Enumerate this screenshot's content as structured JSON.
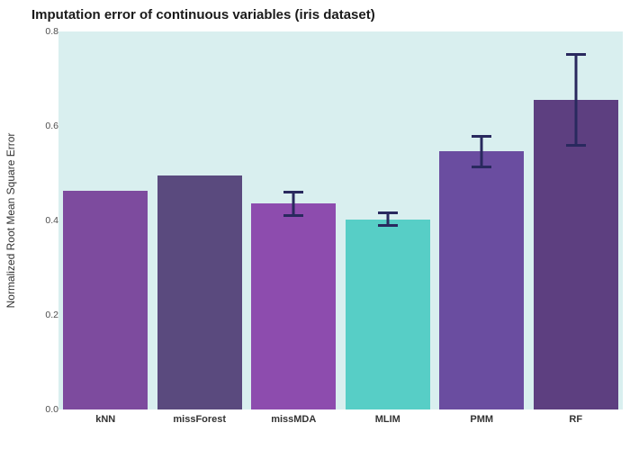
{
  "title": "Imputation error of continuous variables (iris dataset)",
  "chart_data": {
    "type": "bar",
    "title": "Imputation error of continuous variables (iris dataset)",
    "xlabel": "",
    "ylabel": "Normalized Root Mean Square Error",
    "categories": [
      "kNN",
      "missForest",
      "missMDA",
      "MLIM",
      "PMM",
      "RF"
    ],
    "values": [
      0.462,
      0.495,
      0.437,
      0.401,
      0.546,
      0.655
    ],
    "error_low": [
      null,
      null,
      0.408,
      0.386,
      0.51,
      0.556
    ],
    "error_high": [
      null,
      null,
      0.462,
      0.42,
      0.581,
      0.754
    ],
    "bar_colors": [
      "#7d4b9e",
      "#5a4a7e",
      "#8d4cae",
      "#57cec6",
      "#6a4da0",
      "#5d3f80"
    ],
    "errorbar_color": "#29295e",
    "yticks": [
      "0.0",
      "0.2",
      "0.4",
      "0.6",
      "0.8"
    ],
    "ytick_values": [
      0.0,
      0.2,
      0.4,
      0.6,
      0.8
    ],
    "ylim": [
      0,
      0.8
    ],
    "grid": false,
    "legend": "none",
    "panel_background": "#d9efef"
  }
}
